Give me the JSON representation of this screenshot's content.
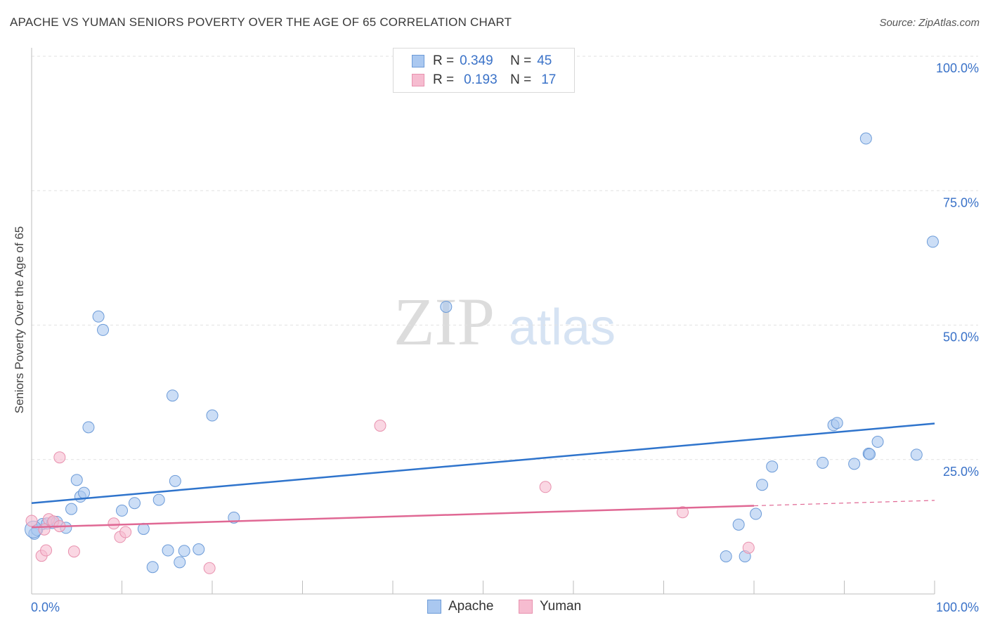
{
  "title": "APACHE VS YUMAN SENIORS POVERTY OVER THE AGE OF 65 CORRELATION CHART",
  "source": "Source: ZipAtlas.com",
  "watermark": {
    "zip": "ZIP",
    "atlas": "atlas"
  },
  "legend": {
    "apache": {
      "r_label": "R =",
      "r_value": "0.349",
      "n_label": "N =",
      "n_value": "45"
    },
    "yuman": {
      "r_label": "R =",
      "r_value": "0.193",
      "n_label": "N =",
      "n_value": "17"
    }
  },
  "colors": {
    "apache_fill": "#aac8f0",
    "apache_stroke": "#6c9bd8",
    "apache_line": "#2f74cc",
    "yuman_fill": "#f6bcd0",
    "yuman_stroke": "#e891ae",
    "yuman_line": "#e06894",
    "axis_label": "#3a72c8"
  },
  "chart_data": {
    "type": "scatter",
    "title": "APACHE VS YUMAN SENIORS POVERTY OVER THE AGE OF 65 CORRELATION CHART",
    "xlabel": "",
    "ylabel": "Seniors Poverty Over the Age of 65",
    "xlim": [
      0,
      100
    ],
    "ylim": [
      0,
      100
    ],
    "x_tick_labels": [
      "0.0%",
      "100.0%"
    ],
    "y_ticks": [
      25,
      50,
      75,
      100
    ],
    "y_tick_labels": [
      "25.0%",
      "50.0%",
      "75.0%",
      "100.0%"
    ],
    "series": [
      {
        "name": "Apache",
        "points": [
          [
            0.3,
            11.2
          ],
          [
            0.6,
            11.9
          ],
          [
            1.2,
            13.0
          ],
          [
            1.7,
            13.1
          ],
          [
            2.3,
            13.2
          ],
          [
            2.8,
            13.4
          ],
          [
            3.8,
            12.3
          ],
          [
            4.4,
            15.8
          ],
          [
            5.0,
            21.2
          ],
          [
            5.4,
            18.1
          ],
          [
            5.8,
            18.8
          ],
          [
            6.3,
            31.0
          ],
          [
            7.4,
            51.6
          ],
          [
            7.9,
            49.1
          ],
          [
            10.0,
            15.5
          ],
          [
            11.4,
            16.9
          ],
          [
            12.4,
            12.1
          ],
          [
            13.4,
            5.0
          ],
          [
            14.1,
            17.5
          ],
          [
            15.1,
            8.1
          ],
          [
            15.6,
            36.9
          ],
          [
            15.9,
            21.0
          ],
          [
            16.4,
            5.9
          ],
          [
            16.9,
            8.0
          ],
          [
            18.5,
            8.3
          ],
          [
            20.0,
            33.2
          ],
          [
            22.4,
            14.2
          ],
          [
            45.9,
            53.4
          ],
          [
            76.9,
            7.0
          ],
          [
            78.3,
            12.9
          ],
          [
            79.0,
            7.0
          ],
          [
            80.2,
            14.9
          ],
          [
            80.9,
            20.3
          ],
          [
            82.0,
            23.7
          ],
          [
            87.6,
            24.4
          ],
          [
            88.8,
            31.4
          ],
          [
            89.2,
            31.8
          ],
          [
            91.1,
            24.2
          ],
          [
            92.7,
            26.1
          ],
          [
            92.8,
            26.0
          ],
          [
            93.7,
            28.3
          ],
          [
            92.4,
            84.7
          ],
          [
            98.0,
            25.9
          ],
          [
            99.8,
            65.5
          ],
          [
            0.2,
            12.0
          ]
        ]
      },
      {
        "name": "Yuman",
        "points": [
          [
            0.0,
            13.6
          ],
          [
            1.1,
            7.1
          ],
          [
            1.6,
            8.1
          ],
          [
            1.9,
            13.9
          ],
          [
            2.4,
            13.5
          ],
          [
            3.1,
            12.6
          ],
          [
            3.1,
            25.4
          ],
          [
            4.7,
            7.9
          ],
          [
            9.1,
            13.1
          ],
          [
            9.8,
            10.6
          ],
          [
            10.4,
            11.5
          ],
          [
            19.7,
            4.8
          ],
          [
            38.6,
            31.3
          ],
          [
            56.9,
            19.9
          ],
          [
            72.1,
            15.2
          ],
          [
            79.4,
            8.6
          ],
          [
            1.4,
            12.0
          ]
        ]
      }
    ],
    "trendlines": [
      {
        "series": "Apache",
        "x": [
          0,
          100
        ],
        "y": [
          16.9,
          31.7
        ]
      },
      {
        "series": "Yuman",
        "x": [
          0,
          80
        ],
        "y": [
          12.4,
          16.4
        ],
        "dashed_extension_to": [
          100,
          17.4
        ]
      }
    ]
  }
}
